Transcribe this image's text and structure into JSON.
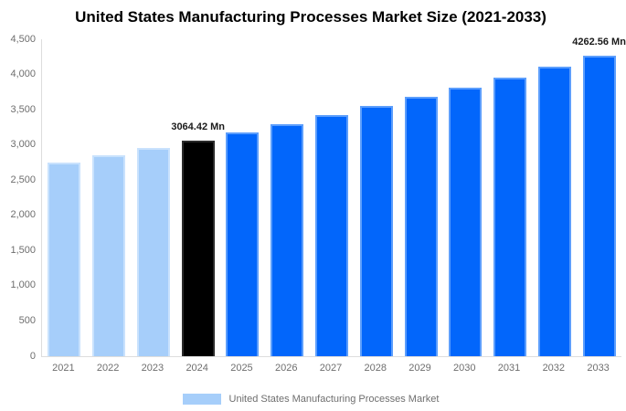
{
  "title": "United States Manufacturing Processes Market Size (2021-2033)",
  "legend": {
    "label": "United States Manufacturing Processes Market",
    "swatch_color": "#A6CEFA"
  },
  "colors": {
    "historical_bar": "#A6CEFA",
    "historical_border": "#C9E2FD",
    "base_year_bar": "#000000",
    "base_year_border": "#2b2b2b",
    "forecast_bar": "#0266FB",
    "forecast_border": "#5C9EFC",
    "axis_line": "#dddddd",
    "axis_text": "#6e6e6e",
    "title_text": "#000000"
  },
  "chart_data": {
    "type": "bar",
    "title": "United States Manufacturing Processes Market Size (2021-2033)",
    "xlabel": "",
    "ylabel": "",
    "value_unit": "Mn",
    "ylim": [
      0,
      4500
    ],
    "ytick_step": 500,
    "ytick_labels": [
      "0",
      "500",
      "1,000",
      "1,500",
      "2,000",
      "2,500",
      "3,000",
      "3,500",
      "4,000",
      "4,500"
    ],
    "grid": false,
    "legend_position": "bottom",
    "categories": [
      "2021",
      "2022",
      "2023",
      "2024",
      "2025",
      "2026",
      "2027",
      "2028",
      "2029",
      "2030",
      "2031",
      "2032",
      "2033"
    ],
    "values": [
      2745,
      2848,
      2954,
      3064.42,
      3179,
      3298,
      3421,
      3549,
      3681,
      3819,
      3962,
      4110,
      4262.56
    ],
    "bar_roles": [
      "historical",
      "historical",
      "historical",
      "base_year",
      "forecast",
      "forecast",
      "forecast",
      "forecast",
      "forecast",
      "forecast",
      "forecast",
      "forecast",
      "forecast"
    ],
    "annotations": [
      {
        "category": "2024",
        "text": "3064.42 Mn"
      },
      {
        "category": "2033",
        "text": "4262.56 Mn"
      }
    ]
  }
}
